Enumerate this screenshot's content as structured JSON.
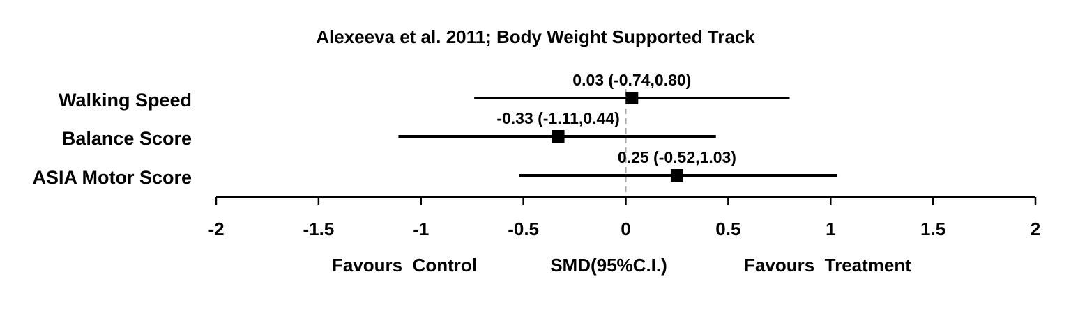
{
  "chart_data": {
    "type": "forest",
    "title": "Alexeeva et al. 2011; Body Weight Supported Track",
    "categories": [
      "Walking Speed",
      "Balance Score",
      "ASIA Motor Score"
    ],
    "points": [
      {
        "category": "Walking Speed",
        "estimate": 0.03,
        "lower": -0.74,
        "upper": 0.8,
        "label": "0.03 (-0.74,0.80)"
      },
      {
        "category": "Balance Score",
        "estimate": -0.33,
        "lower": -1.11,
        "upper": 0.44,
        "label": "-0.33 (-1.11,0.44)"
      },
      {
        "category": "ASIA Motor Score",
        "estimate": 0.25,
        "lower": -0.52,
        "upper": 1.03,
        "label": "0.25 (-0.52,1.03)"
      }
    ],
    "xlim": [
      -2,
      2
    ],
    "xticks": [
      -2,
      -1.5,
      -1,
      -0.5,
      0,
      0.5,
      1,
      1.5,
      2
    ],
    "xtick_labels": [
      "-2",
      "-1.5",
      "-1",
      "-0.5",
      "0",
      "0.5",
      "1",
      "1.5",
      "2"
    ],
    "reference_line": 0,
    "footer_left": "Favours  Control",
    "footer_center": "SMD(95%C.I.)",
    "footer_right": "Favours  Treatment",
    "colors": {
      "marks": "#000000",
      "reference": "#a6a6a6"
    }
  }
}
